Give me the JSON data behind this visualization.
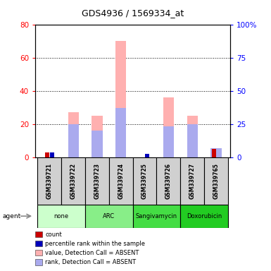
{
  "title": "GDS4936 / 1569334_at",
  "samples": [
    "GSM339721",
    "GSM339722",
    "GSM339723",
    "GSM339724",
    "GSM339725",
    "GSM339726",
    "GSM339727",
    "GSM339765"
  ],
  "count_values": [
    3,
    0,
    0,
    0,
    0,
    0,
    0,
    5
  ],
  "percentile_rank_values": [
    3,
    0,
    0,
    0,
    2,
    0,
    0,
    0
  ],
  "absent_value_values": [
    0,
    27,
    25,
    70,
    0,
    36,
    25,
    0
  ],
  "absent_rank_values": [
    0,
    25,
    20,
    37,
    0,
    23,
    25,
    7
  ],
  "left_ylim": [
    0,
    80
  ],
  "right_ylim": [
    0,
    100
  ],
  "left_yticks": [
    0,
    20,
    40,
    60,
    80
  ],
  "right_yticks": [
    0,
    25,
    50,
    75,
    100
  ],
  "right_yticklabels": [
    "0",
    "25",
    "50",
    "75",
    "100%"
  ],
  "colors": {
    "count": "#cc0000",
    "percentile_rank": "#0000bb",
    "absent_value": "#ffb0b0",
    "absent_rank": "#aaaaee"
  },
  "legend_items": [
    {
      "color": "#cc0000",
      "label": "count"
    },
    {
      "color": "#0000bb",
      "label": "percentile rank within the sample"
    },
    {
      "color": "#ffb0b0",
      "label": "value, Detection Call = ABSENT"
    },
    {
      "color": "#aaaaee",
      "label": "rank, Detection Call = ABSENT"
    }
  ],
  "agent_groups": [
    {
      "label": "none",
      "start": 0,
      "end": 2,
      "color": "#ccffcc"
    },
    {
      "label": "ARC",
      "start": 2,
      "end": 4,
      "color": "#88ee88"
    },
    {
      "label": "Sangivamycin",
      "start": 4,
      "end": 6,
      "color": "#44dd44"
    },
    {
      "label": "Doxorubicin",
      "start": 6,
      "end": 8,
      "color": "#22cc22"
    }
  ],
  "background_gray": "#d0d0d0"
}
